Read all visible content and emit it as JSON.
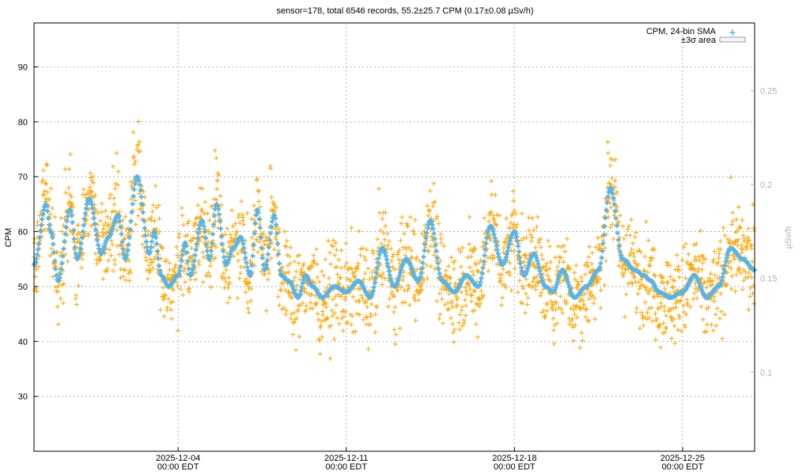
{
  "chart_data": {
    "type": "scatter",
    "title": "sensor=178, total 6546 records, 55.2±25.7 CPM (0.17±0.08 µSv/h)",
    "ylabel": "CPM",
    "y2label": "µSv/h",
    "ylim": [
      20,
      98
    ],
    "y2lim": [
      0.058,
      0.286
    ],
    "yticks": [
      "30",
      "40",
      "50",
      "60",
      "70",
      "80",
      "90"
    ],
    "y2ticks": [
      "0.1",
      "0.15",
      "0.2",
      "0.25"
    ],
    "xticks": [
      {
        "day": 6,
        "date": "2025-12-04",
        "time": "00:00 EDT"
      },
      {
        "day": 13,
        "date": "2025-12-11",
        "time": "00:00 EDT"
      },
      {
        "day": 20,
        "date": "2025-12-18",
        "time": "00:00 EDT"
      },
      {
        "day": 27,
        "date": "2025-12-25",
        "time": "00:00 EDT"
      }
    ],
    "xrange_days": [
      0,
      30
    ],
    "grid": true,
    "legend_position": "top-right",
    "legend": [
      {
        "label": "CPM, 24-bin SMA",
        "color": "#56b4e9"
      },
      {
        "label": "±3σ area",
        "color": "#e8e8e8"
      }
    ],
    "raw_color": "#ffa500",
    "sma_color": "#56b4e9",
    "series": [
      {
        "name": "CPM, 24-bin SMA",
        "x_days": [
          0.0,
          0.5,
          0.7,
          1.0,
          1.5,
          1.8,
          2.3,
          2.8,
          3.1,
          3.5,
          3.8,
          4.3,
          4.8,
          5.0,
          5.3,
          5.6,
          6.0,
          6.3,
          6.5,
          7.0,
          7.3,
          7.6,
          8.0,
          8.3,
          8.6,
          9.0,
          9.3,
          9.6,
          10.0,
          10.3,
          10.6,
          11.0,
          11.3,
          11.6,
          12.0,
          12.5,
          13.0,
          13.5,
          14.0,
          14.5,
          15.0,
          15.5,
          16.0,
          16.5,
          17.0,
          17.5,
          18.0,
          18.5,
          19.0,
          19.5,
          20.0,
          20.4,
          20.8,
          21.3,
          21.6,
          22.0,
          22.5,
          23.0,
          23.5,
          24.0,
          24.5,
          25.0,
          25.4,
          25.7,
          26.0,
          26.5,
          27.0,
          27.5,
          28.0,
          28.5,
          29.0,
          29.5,
          30.0
        ],
        "y": [
          54,
          65,
          60,
          51,
          64,
          55,
          66,
          56,
          59,
          63,
          55,
          70,
          56,
          60,
          52,
          50,
          52,
          58,
          52,
          62,
          55,
          65,
          54,
          57,
          59,
          52,
          64,
          53,
          63,
          52,
          51,
          48,
          52,
          50,
          48,
          50,
          49,
          51,
          48,
          57,
          50,
          55,
          51,
          62,
          51,
          49,
          52,
          50,
          61,
          54,
          60,
          52,
          56,
          50,
          49,
          53,
          48,
          50,
          53,
          68,
          55,
          53,
          52,
          51,
          49,
          48,
          49,
          52,
          48,
          50,
          57,
          55,
          53
        ]
      }
    ]
  }
}
